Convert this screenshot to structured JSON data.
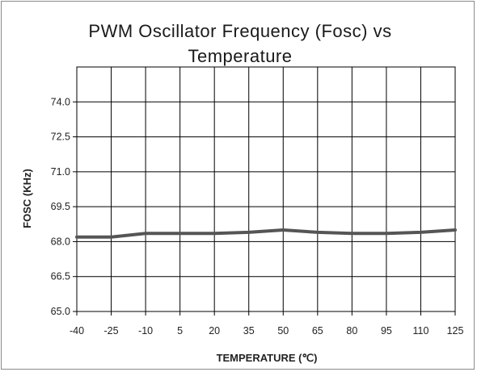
{
  "chart_data": {
    "type": "line",
    "title_lines": [
      "PWM Oscillator Frequency (Fosc) vs",
      "Temperature"
    ],
    "xlabel": "TEMPERATURE (℃)",
    "ylabel": "FOSC (KHz)",
    "x_ticks": [
      -40,
      -25,
      -10,
      5,
      20,
      35,
      50,
      65,
      80,
      95,
      110,
      125
    ],
    "y_ticks": [
      "74.0",
      "72.5",
      "71.0",
      "69.5",
      "68.0",
      "66.5",
      "65.0"
    ],
    "xlim": [
      -40,
      125
    ],
    "ylim": [
      65.0,
      75.5
    ],
    "grid": true,
    "legend": "none",
    "line_color": "#555555",
    "series": [
      {
        "x": [
          -40,
          -25,
          -10,
          5,
          20,
          35,
          50,
          65,
          80,
          95,
          110,
          125
        ],
        "y": [
          68.2,
          68.2,
          68.35,
          68.35,
          68.35,
          68.4,
          68.5,
          68.4,
          68.35,
          68.35,
          68.4,
          68.5
        ]
      }
    ]
  }
}
